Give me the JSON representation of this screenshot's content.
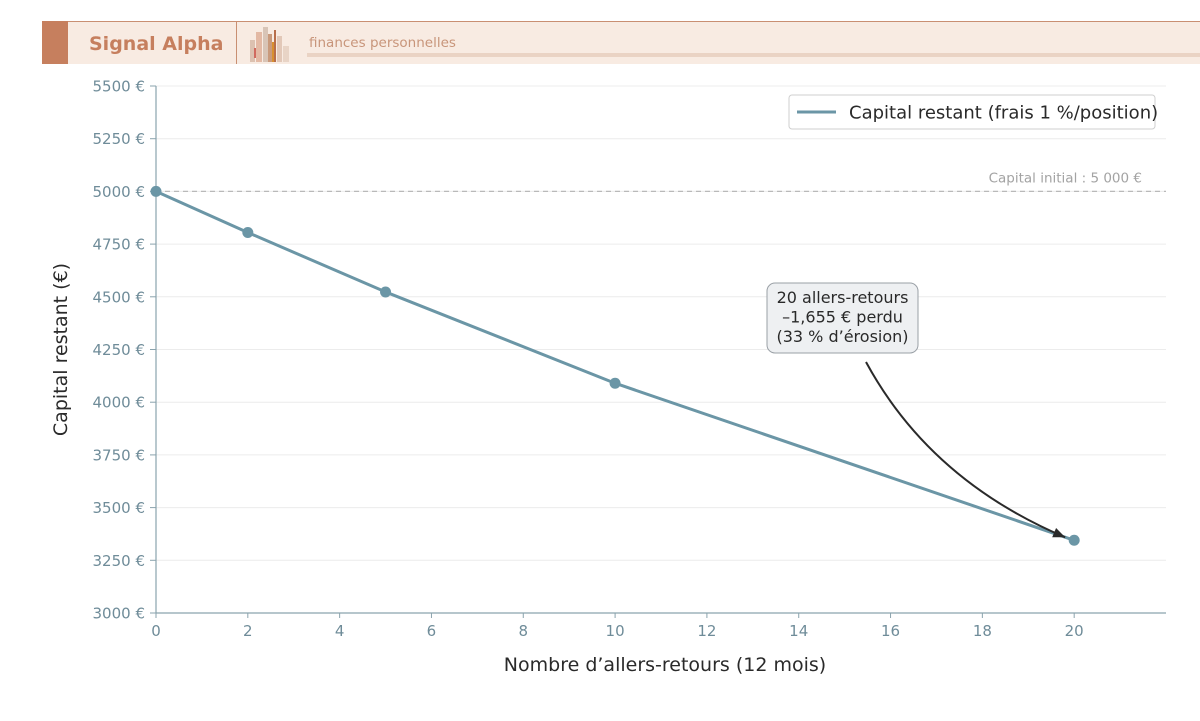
{
  "header": {
    "brand": "Signal Alpha",
    "tagline": "finances personnelles",
    "accent_color": "#c67f5e",
    "band_color": "#f8ebe2",
    "logo_icon": "city-skyline-icon"
  },
  "chart_data": {
    "type": "line",
    "xlabel": "Nombre d’allers-retours (12 mois)",
    "ylabel": "Capital restant (€)",
    "xlim": [
      0,
      22
    ],
    "ylim": [
      3000,
      5500
    ],
    "x_ticks": [
      0,
      2,
      4,
      6,
      8,
      10,
      12,
      14,
      16,
      18,
      20
    ],
    "y_ticks": [
      3000,
      3250,
      3500,
      3750,
      4000,
      4250,
      4500,
      4750,
      5000,
      5250,
      5500
    ],
    "y_tick_labels": [
      "3000 €",
      "3250 €",
      "3500 €",
      "3750 €",
      "4000 €",
      "4250 €",
      "4500 €",
      "4750 €",
      "5000 €",
      "5250 €",
      "5500 €"
    ],
    "grid": "horizontal",
    "legend": {
      "placement": "top-right"
    },
    "series": [
      {
        "name": "Capital restant (frais 1 %/position)",
        "color": "#6b96a6",
        "x": [
          0,
          2,
          5,
          10,
          20
        ],
        "y": [
          5000,
          4805,
          4523,
          4090,
          3345
        ]
      }
    ],
    "reference_line": {
      "y": 5000,
      "label": "Capital initial : 5 000 €"
    },
    "annotation": {
      "lines": [
        "20 allers-retours",
        "–1,655 € perdu",
        "(33 % d’érosion)"
      ],
      "target": [
        20,
        3345
      ]
    }
  }
}
